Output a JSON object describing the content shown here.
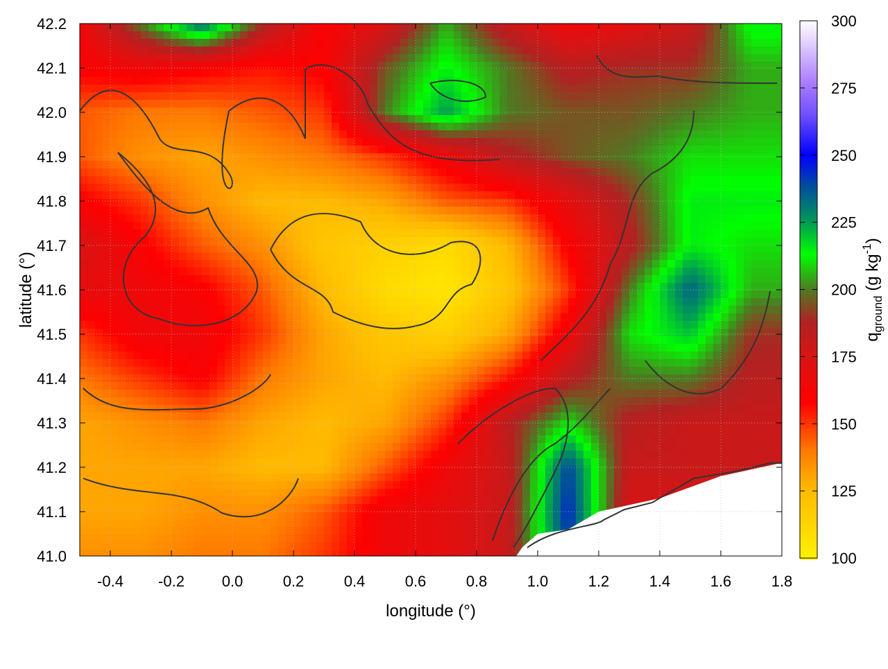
{
  "chart_data": {
    "type": "heatmap",
    "xlabel": "longitude (°)",
    "ylabel": "latitude (°)",
    "colorbar_label": {
      "base": "q",
      "subscript": "ground",
      "unit_prefix": " (g kg",
      "superscript": "-1",
      "unit_suffix": ")"
    },
    "xlim": [
      -0.5,
      1.8
    ],
    "ylim": [
      41.0,
      42.2
    ],
    "clim": [
      100,
      300
    ],
    "xticks": [
      "-0.4",
      "-0.2",
      "0.0",
      "0.2",
      "0.4",
      "0.6",
      "0.8",
      "1.0",
      "1.2",
      "1.4",
      "1.6",
      "1.8"
    ],
    "yticks": [
      "41.0",
      "41.1",
      "41.2",
      "41.3",
      "41.4",
      "41.5",
      "41.6",
      "41.7",
      "41.8",
      "41.9",
      "42.0",
      "42.1",
      "42.2"
    ],
    "cticks": [
      "100",
      "125",
      "150",
      "175",
      "200",
      "225",
      "250",
      "275",
      "300"
    ],
    "grid": true,
    "colormap": [
      [
        100,
        "#fff000"
      ],
      [
        125,
        "#ffbb00"
      ],
      [
        140,
        "#ff7a00"
      ],
      [
        158,
        "#ff0000"
      ],
      [
        175,
        "#d81414"
      ],
      [
        188,
        "#b02222"
      ],
      [
        200,
        "#4e7a22"
      ],
      [
        213,
        "#00ff00"
      ],
      [
        225,
        "#009a55"
      ],
      [
        238,
        "#00509a"
      ],
      [
        250,
        "#0000ff"
      ],
      [
        265,
        "#7050ff"
      ],
      [
        278,
        "#b080ff"
      ],
      [
        300,
        "#ffffff"
      ]
    ],
    "grid_lon": [
      -0.5,
      -0.3,
      -0.1,
      0.1,
      0.3,
      0.5,
      0.7,
      0.9,
      1.1,
      1.3,
      1.5,
      1.7
    ],
    "grid_lat": [
      42.2,
      42.1,
      42.0,
      41.9,
      41.8,
      41.7,
      41.6,
      41.5,
      41.4,
      41.3,
      41.2,
      41.1,
      41.0
    ],
    "values": [
      [
        165,
        200,
        235,
        190,
        160,
        175,
        205,
        180,
        165,
        170,
        180,
        215
      ],
      [
        160,
        165,
        160,
        155,
        160,
        195,
        215,
        200,
        185,
        190,
        190,
        205
      ],
      [
        145,
        140,
        140,
        145,
        150,
        200,
        225,
        200,
        195,
        195,
        200,
        205
      ],
      [
        145,
        135,
        130,
        135,
        140,
        150,
        165,
        185,
        195,
        200,
        210,
        210
      ],
      [
        160,
        150,
        135,
        125,
        125,
        130,
        145,
        150,
        170,
        190,
        215,
        215
      ],
      [
        175,
        160,
        145,
        135,
        120,
        115,
        110,
        125,
        160,
        185,
        215,
        210
      ],
      [
        170,
        165,
        160,
        145,
        125,
        110,
        105,
        120,
        150,
        200,
        235,
        205
      ],
      [
        150,
        165,
        165,
        150,
        130,
        120,
        115,
        130,
        165,
        210,
        220,
        190
      ],
      [
        140,
        150,
        160,
        140,
        130,
        125,
        135,
        155,
        185,
        200,
        200,
        185
      ],
      [
        130,
        135,
        140,
        130,
        125,
        130,
        150,
        185,
        210,
        185,
        180,
        180
      ],
      [
        130,
        130,
        130,
        125,
        125,
        145,
        165,
        180,
        240,
        180,
        180,
        180
      ],
      [
        130,
        130,
        135,
        135,
        145,
        165,
        170,
        180,
        245,
        175,
        175,
        175
      ],
      [
        135,
        135,
        140,
        140,
        150,
        165,
        170,
        180,
        240,
        175,
        175,
        175
      ]
    ],
    "no_data_region": [
      [
        0.93,
        41.0
      ],
      [
        1.8,
        41.0
      ],
      [
        1.8,
        41.21
      ],
      [
        1.6,
        41.18
      ],
      [
        1.4,
        41.13
      ],
      [
        1.2,
        41.1
      ],
      [
        1.1,
        41.06
      ],
      [
        1.0,
        41.05
      ],
      [
        0.95,
        41.02
      ]
    ]
  }
}
